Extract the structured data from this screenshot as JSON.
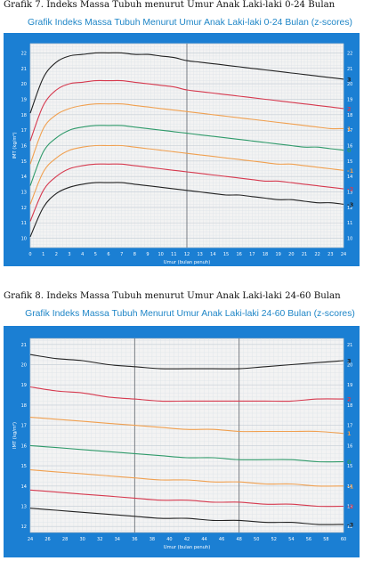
{
  "caption1": "Grafik 7. Indeks Massa Tubuh menurut Umur Anak Laki-laki 0-24 Bulan",
  "title1": "Grafik Indeks Massa Tubuh Menurut Umur Anak Laki-laki 0-24 Bulan (z-scores)",
  "caption2": "Grafik 8. Indeks Massa Tubuh menurut Umur Anak Laki-laki 24-60 Bulan",
  "title2": "Grafik Indeks Massa Tubuh Menurut Umur Anak Laki-laki  24-60 Bulan (z-scores)",
  "colors": {
    "panel": "#1b7fd3",
    "plot": "#f3f3f3",
    "z3": "#222222",
    "z2": "#d63a4f",
    "z1": "#f0a050",
    "z0": "#2f9a6a"
  },
  "chart_data": [
    {
      "type": "line",
      "xlabel": "Umur (bulan penuh)",
      "ylabel": "IMT (kg/m²)",
      "xlim": [
        0,
        24
      ],
      "ylim": [
        9.4,
        22.6
      ],
      "xticks": [
        0,
        1,
        2,
        3,
        4,
        5,
        6,
        7,
        8,
        9,
        10,
        11,
        12,
        13,
        14,
        15,
        16,
        17,
        18,
        19,
        20,
        21,
        22,
        23,
        24
      ],
      "yticks": [
        10,
        11,
        12,
        13,
        14,
        15,
        16,
        17,
        18,
        19,
        20,
        21,
        22
      ],
      "vline": 12,
      "x": [
        0,
        1,
        2,
        3,
        4,
        5,
        6,
        7,
        8,
        9,
        10,
        11,
        12,
        13,
        14,
        15,
        16,
        17,
        18,
        19,
        20,
        21,
        22,
        23,
        24
      ],
      "series": [
        {
          "name": "3",
          "color": "#222222",
          "values": [
            18.1,
            20.4,
            21.4,
            21.8,
            21.9,
            22.0,
            22.0,
            22.0,
            21.9,
            21.9,
            21.8,
            21.7,
            21.5,
            21.4,
            21.3,
            21.2,
            21.1,
            21.0,
            20.9,
            20.8,
            20.7,
            20.6,
            20.5,
            20.4,
            20.3
          ]
        },
        {
          "name": "2",
          "color": "#d63a4f",
          "values": [
            16.3,
            18.6,
            19.6,
            20.0,
            20.1,
            20.2,
            20.2,
            20.2,
            20.1,
            20.0,
            19.9,
            19.8,
            19.6,
            19.5,
            19.4,
            19.3,
            19.2,
            19.1,
            19.0,
            18.9,
            18.8,
            18.7,
            18.6,
            18.5,
            18.4
          ]
        },
        {
          "name": "1",
          "color": "#f0a050",
          "values": [
            14.8,
            17.1,
            18.0,
            18.4,
            18.6,
            18.7,
            18.7,
            18.7,
            18.6,
            18.5,
            18.4,
            18.3,
            18.2,
            18.1,
            18.0,
            17.9,
            17.8,
            17.7,
            17.6,
            17.5,
            17.4,
            17.3,
            17.2,
            17.1,
            17.1
          ]
        },
        {
          "name": "0",
          "color": "#2f9a6a",
          "values": [
            13.4,
            15.6,
            16.5,
            17.0,
            17.2,
            17.3,
            17.3,
            17.3,
            17.2,
            17.1,
            17.0,
            16.9,
            16.8,
            16.7,
            16.6,
            16.5,
            16.4,
            16.3,
            16.2,
            16.1,
            16.0,
            15.9,
            15.9,
            15.8,
            15.7
          ]
        },
        {
          "name": "-1",
          "color": "#f0a050",
          "values": [
            12.2,
            14.3,
            15.2,
            15.7,
            15.9,
            16.0,
            16.0,
            16.0,
            15.9,
            15.8,
            15.7,
            15.6,
            15.5,
            15.4,
            15.3,
            15.2,
            15.1,
            15.0,
            14.9,
            14.8,
            14.8,
            14.7,
            14.6,
            14.5,
            14.4
          ]
        },
        {
          "name": "-2",
          "color": "#d63a4f",
          "values": [
            11.1,
            13.1,
            14.0,
            14.5,
            14.7,
            14.8,
            14.8,
            14.8,
            14.7,
            14.6,
            14.5,
            14.4,
            14.3,
            14.2,
            14.1,
            14.0,
            13.9,
            13.8,
            13.7,
            13.7,
            13.6,
            13.5,
            13.4,
            13.3,
            13.2
          ]
        },
        {
          "name": "-3",
          "color": "#222222",
          "values": [
            10.1,
            12.0,
            12.9,
            13.3,
            13.5,
            13.6,
            13.6,
            13.6,
            13.5,
            13.4,
            13.3,
            13.2,
            13.1,
            13.0,
            12.9,
            12.8,
            12.8,
            12.7,
            12.6,
            12.5,
            12.5,
            12.4,
            12.3,
            12.3,
            12.2
          ]
        }
      ]
    },
    {
      "type": "line",
      "xlabel": "Umur (bulan penuh)",
      "ylabel": "IMT (kg/m²)",
      "xlim": [
        24,
        60
      ],
      "ylim": [
        11.7,
        21.3
      ],
      "xticks": [
        24,
        26,
        28,
        30,
        32,
        34,
        36,
        38,
        40,
        42,
        44,
        46,
        48,
        50,
        52,
        54,
        56,
        58,
        60
      ],
      "yticks": [
        12,
        13,
        14,
        15,
        16,
        17,
        18,
        19,
        20,
        21
      ],
      "vlines": [
        36,
        48
      ],
      "x": [
        24,
        27,
        30,
        33,
        36,
        39,
        42,
        45,
        48,
        51,
        54,
        57,
        60
      ],
      "series": [
        {
          "name": "3",
          "color": "#222222",
          "values": [
            20.5,
            20.3,
            20.2,
            20.0,
            19.9,
            19.8,
            19.8,
            19.8,
            19.8,
            19.9,
            20.0,
            20.1,
            20.2
          ]
        },
        {
          "name": "2",
          "color": "#d63a4f",
          "values": [
            18.9,
            18.7,
            18.6,
            18.4,
            18.3,
            18.2,
            18.2,
            18.2,
            18.2,
            18.2,
            18.2,
            18.3,
            18.3
          ]
        },
        {
          "name": "1",
          "color": "#f0a050",
          "values": [
            17.4,
            17.3,
            17.2,
            17.1,
            17.0,
            16.9,
            16.8,
            16.8,
            16.7,
            16.7,
            16.7,
            16.7,
            16.6
          ]
        },
        {
          "name": "0",
          "color": "#2f9a6a",
          "values": [
            16.0,
            15.9,
            15.8,
            15.7,
            15.6,
            15.5,
            15.4,
            15.4,
            15.3,
            15.3,
            15.3,
            15.2,
            15.2
          ]
        },
        {
          "name": "-1",
          "color": "#f0a050",
          "values": [
            14.8,
            14.7,
            14.6,
            14.5,
            14.4,
            14.3,
            14.3,
            14.2,
            14.2,
            14.1,
            14.1,
            14.0,
            14.0
          ]
        },
        {
          "name": "-2",
          "color": "#d63a4f",
          "values": [
            13.8,
            13.7,
            13.6,
            13.5,
            13.4,
            13.3,
            13.3,
            13.2,
            13.2,
            13.1,
            13.1,
            13.0,
            13.0
          ]
        },
        {
          "name": "-3",
          "color": "#222222",
          "values": [
            12.9,
            12.8,
            12.7,
            12.6,
            12.5,
            12.4,
            12.4,
            12.3,
            12.3,
            12.2,
            12.2,
            12.1,
            12.1
          ]
        }
      ]
    }
  ]
}
